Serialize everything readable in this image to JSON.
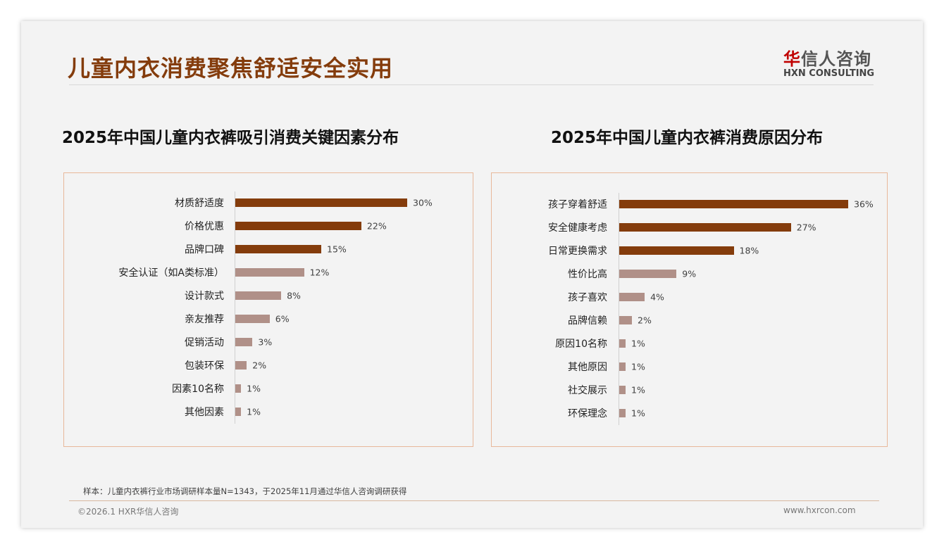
{
  "header": {
    "title": "儿童内衣消费聚焦舒适安全实用",
    "logo_cn": "华信人咨询",
    "logo_en": "HXN CONSULTING"
  },
  "colors": {
    "primary": "#843c0c",
    "secondary": "#b09088"
  },
  "chart_data": [
    {
      "type": "bar",
      "orientation": "horizontal",
      "title": "2025年中国儿童内衣裤吸引消费关键因素分布",
      "categories": [
        "材质舒适度",
        "价格优惠",
        "品牌口碑",
        "安全认证（如A类标准）",
        "设计款式",
        "亲友推荐",
        "促销活动",
        "包装环保",
        "因素10名称",
        "其他因素"
      ],
      "values": [
        30,
        22,
        15,
        12,
        8,
        6,
        3,
        2,
        1,
        1
      ],
      "unit": "%",
      "xlim": [
        0,
        30
      ]
    },
    {
      "type": "bar",
      "orientation": "horizontal",
      "title": "2025年中国儿童内衣裤消费原因分布",
      "categories": [
        "孩子穿着舒适",
        "安全健康考虑",
        "日常更换需求",
        "性价比高",
        "孩子喜欢",
        "品牌信赖",
        "原因10名称",
        "其他原因",
        "社交展示",
        "环保理念"
      ],
      "values": [
        36,
        27,
        18,
        9,
        4,
        2,
        1,
        1,
        1,
        1
      ],
      "unit": "%",
      "xlim": [
        0,
        36
      ]
    }
  ],
  "footer": {
    "note": "样本：儿童内衣裤行业市场调研样本量N=1343，于2025年11月通过华信人咨询调研获得",
    "copyright": "©2026.1 HXR华信人咨询",
    "url": "www.hxrcon.com"
  }
}
